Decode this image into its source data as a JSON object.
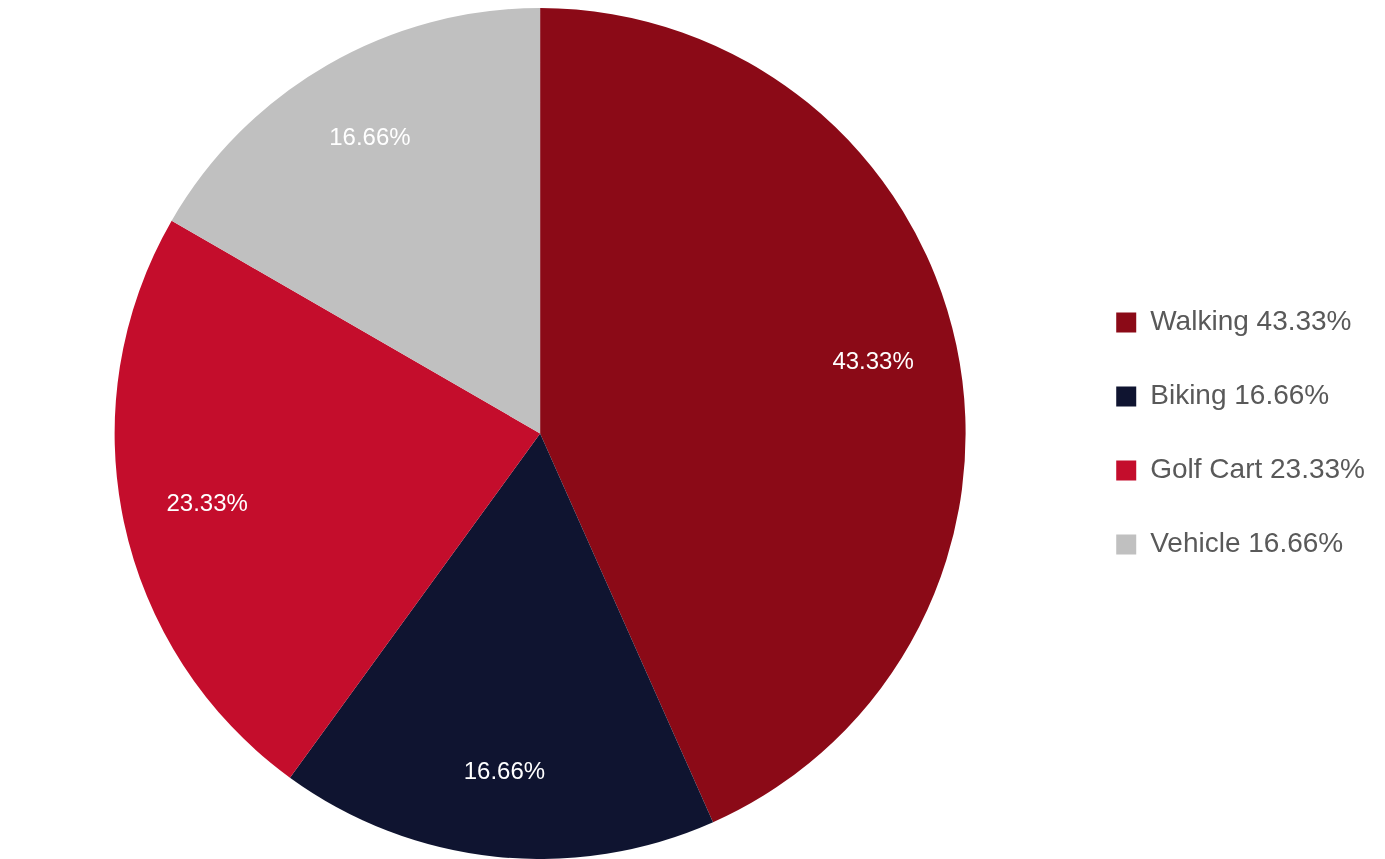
{
  "chart_data": {
    "type": "pie",
    "categories": [
      "Walking",
      "Biking",
      "Golf Cart",
      "Vehicle"
    ],
    "values": [
      43.33,
      16.66,
      23.33,
      16.66
    ],
    "value_labels": [
      "43.33%",
      "16.66%",
      "23.33%",
      "16.66%"
    ],
    "colors": [
      "#8b0a17",
      "#0f1430",
      "#c40d2c",
      "#c0c0c0"
    ],
    "data_labels": true,
    "legend": "right"
  }
}
